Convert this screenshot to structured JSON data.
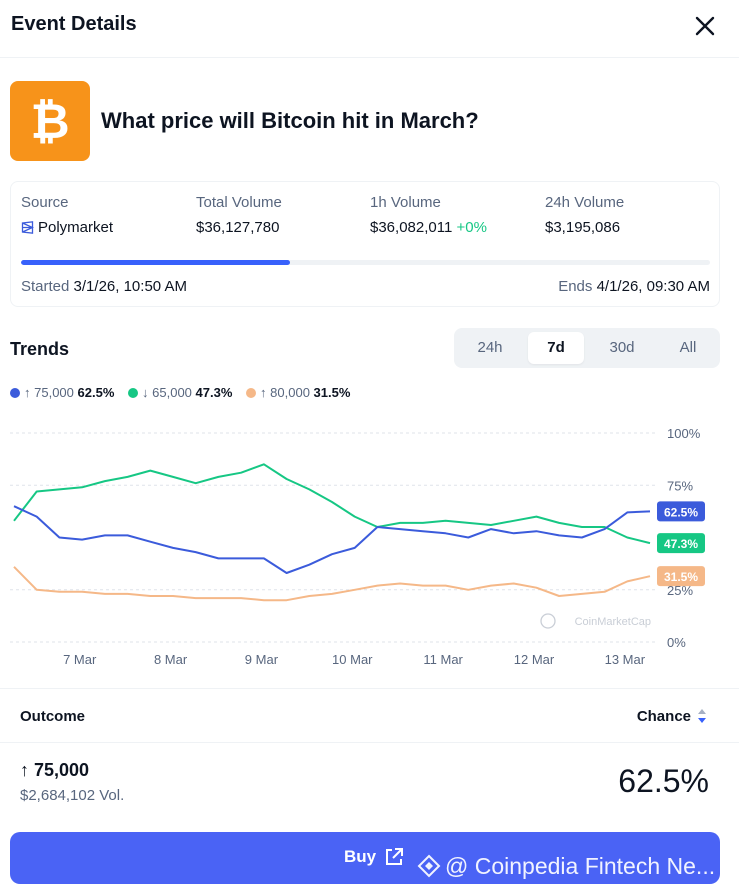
{
  "header": {
    "title": "Event Details",
    "close_icon": "close-icon"
  },
  "event": {
    "question": "What price will Bitcoin hit in March?",
    "logo_icon": "bitcoin-icon",
    "logo_color": "#f7931a"
  },
  "stats": {
    "source": {
      "label": "Source",
      "value": "Polymarket",
      "icon": "polymarket-icon"
    },
    "total_volume": {
      "label": "Total Volume",
      "value": "$36,127,780"
    },
    "volume_1h": {
      "label": "1h Volume",
      "value": "$36,082,011",
      "change": "+0%"
    },
    "volume_24h": {
      "label": "24h Volume",
      "value": "$3,195,086"
    },
    "progress": 0.39,
    "started": {
      "label": "Started",
      "value": "3/1/26, 10:50 AM"
    },
    "ends": {
      "label": "Ends",
      "value": "4/1/26, 09:30 AM"
    }
  },
  "trends": {
    "title": "Trends",
    "tabs": [
      "24h",
      "7d",
      "30d",
      "All"
    ],
    "active_tab": "7d",
    "legend": [
      {
        "arrow": "↑",
        "label": "75,000",
        "value": "62.5%",
        "color": "#3b5bdb"
      },
      {
        "arrow": "↓",
        "label": "65,000",
        "value": "47.3%",
        "color": "#16c784"
      },
      {
        "arrow": "↑",
        "label": "80,000",
        "value": "31.5%",
        "color": "#f5b888"
      }
    ]
  },
  "chart_data": {
    "type": "line",
    "x": [
      "6 Mar 18:00",
      "7 Mar 00:00",
      "7 Mar 06:00",
      "7 Mar 12:00",
      "7 Mar 18:00",
      "8 Mar 00:00",
      "8 Mar 06:00",
      "8 Mar 12:00",
      "8 Mar 18:00",
      "9 Mar 00:00",
      "9 Mar 06:00",
      "9 Mar 12:00",
      "9 Mar 18:00",
      "10 Mar 00:00",
      "10 Mar 06:00",
      "10 Mar 12:00",
      "10 Mar 18:00",
      "11 Mar 00:00",
      "11 Mar 06:00",
      "11 Mar 12:00",
      "11 Mar 18:00",
      "12 Mar 00:00",
      "12 Mar 06:00",
      "12 Mar 12:00",
      "12 Mar 18:00",
      "13 Mar 00:00",
      "13 Mar 06:00",
      "13 Mar 12:00",
      "13 Mar 18:00"
    ],
    "x_ticks": [
      "7 Mar",
      "8 Mar",
      "9 Mar",
      "10 Mar",
      "11 Mar",
      "12 Mar",
      "13 Mar"
    ],
    "y_ticks": [
      "0%",
      "25%",
      "75%",
      "100%"
    ],
    "ylim": [
      0,
      100
    ],
    "series": [
      {
        "name": "↑ 75,000",
        "color": "#3b5bdb",
        "end_label": "62.5%",
        "values": [
          65,
          60,
          50,
          49,
          51,
          51,
          48,
          45,
          43,
          40,
          40,
          40,
          33,
          37,
          42,
          45,
          55,
          54,
          53,
          52,
          50,
          54,
          52,
          53,
          51,
          50,
          54,
          62,
          62.5
        ]
      },
      {
        "name": "↓ 65,000",
        "color": "#16c784",
        "end_label": "47.3%",
        "values": [
          58,
          72,
          73,
          74,
          77,
          79,
          82,
          79,
          76,
          79,
          81,
          85,
          78,
          73,
          67,
          60,
          55,
          57,
          57,
          58,
          57,
          56,
          58,
          60,
          57,
          55,
          55,
          50,
          47.3
        ]
      },
      {
        "name": "↑ 80,000",
        "color": "#f5b888",
        "end_label": "31.5%",
        "values": [
          36,
          25,
          24,
          24,
          23,
          23,
          22,
          22,
          21,
          21,
          21,
          20,
          20,
          22,
          23,
          25,
          27,
          28,
          27,
          27,
          25,
          27,
          28,
          26,
          22,
          23,
          24,
          29,
          31.5
        ]
      }
    ],
    "watermark": "CoinMarketCap"
  },
  "outcomes": {
    "outcome_label": "Outcome",
    "chance_label": "Chance",
    "rows": [
      {
        "arrow": "↑",
        "name": "75,000",
        "volume": "$2,684,102 Vol.",
        "chance": "62.5%"
      }
    ]
  },
  "buy": {
    "label": "Buy",
    "icon": "external-link-icon"
  },
  "watermark_text": "@ Coinpedia Fintech Ne..."
}
